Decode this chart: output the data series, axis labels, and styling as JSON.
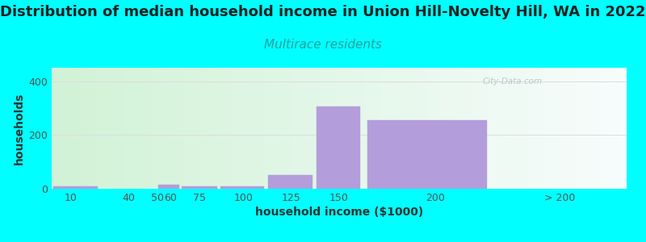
{
  "title": "Distribution of median household income in Union Hill-Novelty Hill, WA in 2022",
  "subtitle": "Multirace residents",
  "xlabel": "household income ($1000)",
  "ylabel": "households",
  "background_color": "#00FFFF",
  "bar_color": "#b39ddb",
  "subtitle_color": "#2aa0a0",
  "title_color": "#222222",
  "axis_label_color": "#333333",
  "tick_color": "#555555",
  "watermark_color": "#b0c8c8",
  "grid_color": "#dddddd",
  "ylim": [
    0,
    450
  ],
  "yticks": [
    0,
    200,
    400
  ],
  "title_fontsize": 13,
  "subtitle_fontsize": 11,
  "axis_label_fontsize": 10,
  "tick_fontsize": 9,
  "bar_lefts": [
    0,
    25,
    37,
    45,
    55,
    67,
    87,
    112,
    137,
    162,
    230
  ],
  "bar_widths": [
    25,
    12,
    8,
    10,
    12,
    20,
    25,
    25,
    25,
    68,
    70
  ],
  "bar_values": [
    10,
    0,
    0,
    0,
    15,
    8,
    8,
    50,
    305,
    255,
    0
  ],
  "xtick_positions": [
    10,
    40,
    55,
    62,
    77,
    100,
    125,
    150,
    200,
    265
  ],
  "xtick_labels": [
    "10",
    "40",
    "50",
    "60",
    "75",
    "100",
    "125",
    "150",
    "200",
    "> 200"
  ],
  "xmin": 0,
  "xmax": 300
}
